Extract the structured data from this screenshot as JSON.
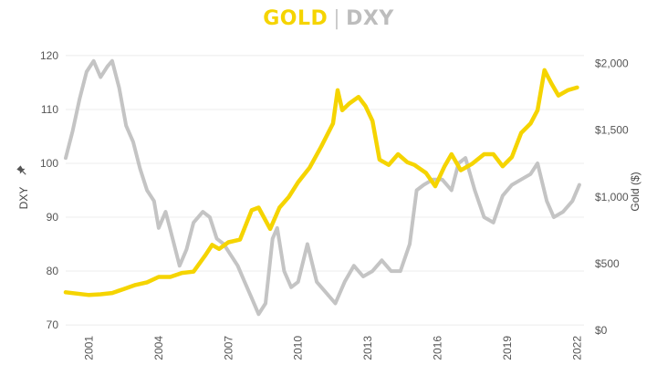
{
  "title": {
    "gold": "GOLD",
    "separator": "|",
    "dxy": "DXY"
  },
  "colors": {
    "gold": "#f5d400",
    "dxy": "#c4c4c4",
    "grid": "#ececec",
    "axis_text": "#555555"
  },
  "chart_data": {
    "type": "line",
    "title": "GOLD | DXY",
    "xlabel": "",
    "ylabel_left": "DXY",
    "ylabel_left_icon": "pin-icon",
    "ylabel_right": "Gold ($)",
    "xlim": [
      2000.0,
      2022.3
    ],
    "ylim_left": [
      69,
      121
    ],
    "ylim_right": [
      0,
      2100
    ],
    "grid": "horizontal",
    "legend": "none",
    "x_tick_labels": [
      "2001",
      "2004",
      "2007",
      "2010",
      "2013",
      "2016",
      "2019",
      "2022"
    ],
    "x_ticks": [
      2001,
      2004,
      2007,
      2010,
      2013,
      2016,
      2019,
      2022
    ],
    "y_left_tick_labels": [
      "70",
      "80",
      "90",
      "100",
      "110",
      "120"
    ],
    "y_left_ticks": [
      70,
      80,
      90,
      100,
      110,
      120
    ],
    "y_right_tick_labels": [
      "$0",
      "$500",
      "$1,000",
      "$1,500",
      "$2,000"
    ],
    "y_right_ticks": [
      0,
      500,
      1000,
      1500,
      2000
    ],
    "series": [
      {
        "name": "DXY",
        "axis": "left",
        "x": [
          2000.0,
          2000.3,
          2000.6,
          2000.9,
          2001.2,
          2001.5,
          2001.8,
          2002.0,
          2002.3,
          2002.6,
          2002.9,
          2003.2,
          2003.5,
          2003.8,
          2004.0,
          2004.3,
          2004.6,
          2004.9,
          2005.2,
          2005.5,
          2005.9,
          2006.2,
          2006.5,
          2006.8,
          2007.1,
          2007.4,
          2007.7,
          2008.0,
          2008.3,
          2008.6,
          2008.9,
          2009.1,
          2009.4,
          2009.7,
          2010.0,
          2010.4,
          2010.8,
          2011.2,
          2011.6,
          2012.0,
          2012.4,
          2012.8,
          2013.2,
          2013.6,
          2014.0,
          2014.4,
          2014.8,
          2015.1,
          2015.4,
          2015.8,
          2016.2,
          2016.6,
          2016.9,
          2017.2,
          2017.6,
          2018.0,
          2018.4,
          2018.8,
          2019.2,
          2019.6,
          2020.0,
          2020.3,
          2020.7,
          2021.0,
          2021.4,
          2021.8,
          2022.1
        ],
        "y": [
          101,
          106,
          112,
          117,
          119,
          116,
          118,
          119,
          114,
          107,
          104,
          99,
          95,
          93,
          88,
          91,
          86,
          81,
          84,
          89,
          91,
          90,
          86,
          85,
          83,
          81,
          78,
          75,
          72,
          74,
          86,
          88,
          80,
          77,
          78,
          85,
          78,
          76,
          74,
          78,
          81,
          79,
          80,
          82,
          80,
          80,
          85,
          95,
          96,
          97,
          97,
          95,
          100,
          101,
          95,
          90,
          89,
          94,
          96,
          97,
          98,
          100,
          93,
          90,
          91,
          93,
          96
        ]
      },
      {
        "name": "Gold",
        "axis": "right",
        "x": [
          2000.0,
          2000.5,
          2001.0,
          2001.5,
          2002.0,
          2002.5,
          2003.0,
          2003.5,
          2004.0,
          2004.5,
          2005.0,
          2005.5,
          2006.0,
          2006.3,
          2006.6,
          2007.0,
          2007.5,
          2008.0,
          2008.3,
          2008.8,
          2009.2,
          2009.6,
          2010.0,
          2010.5,
          2011.0,
          2011.5,
          2011.7,
          2011.9,
          2012.2,
          2012.6,
          2012.9,
          2013.2,
          2013.5,
          2013.9,
          2014.3,
          2014.7,
          2015.0,
          2015.5,
          2015.9,
          2016.3,
          2016.6,
          2017.0,
          2017.5,
          2018.0,
          2018.4,
          2018.8,
          2019.2,
          2019.6,
          2020.0,
          2020.3,
          2020.6,
          2020.9,
          2021.2,
          2021.6,
          2022.0
        ],
        "y": [
          285,
          275,
          265,
          270,
          280,
          310,
          340,
          360,
          400,
          400,
          430,
          440,
          560,
          640,
          610,
          660,
          680,
          900,
          920,
          760,
          920,
          1000,
          1110,
          1220,
          1380,
          1550,
          1800,
          1650,
          1700,
          1750,
          1680,
          1570,
          1280,
          1240,
          1320,
          1260,
          1240,
          1180,
          1080,
          1230,
          1320,
          1200,
          1250,
          1320,
          1320,
          1230,
          1300,
          1480,
          1550,
          1650,
          1950,
          1850,
          1760,
          1800,
          1820
        ]
      }
    ]
  }
}
